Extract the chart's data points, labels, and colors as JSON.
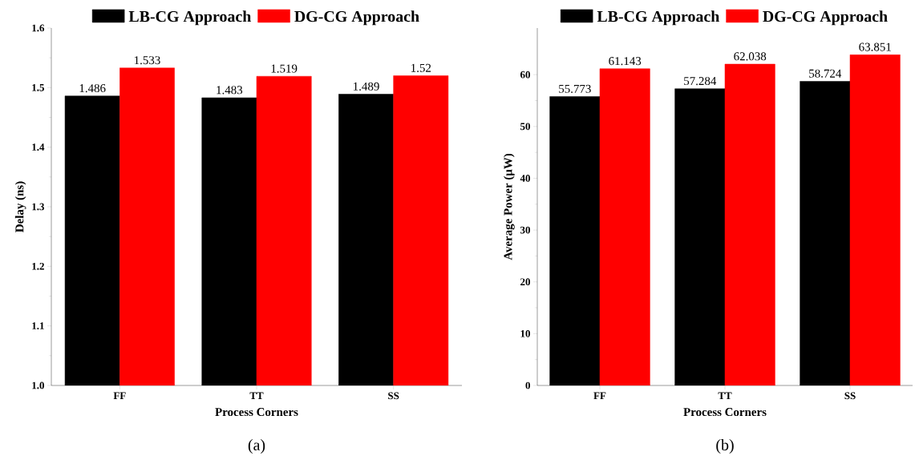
{
  "chart_data": [
    {
      "type": "bar",
      "xlabel": "Process Corners",
      "ylabel": "Delay (ns)",
      "categories": [
        "FF",
        "TT",
        "SS"
      ],
      "series": [
        {
          "name": "LB-CG Approach",
          "color": "#000000",
          "values": [
            1.486,
            1.483,
            1.489
          ]
        },
        {
          "name": "DG-CG Approach",
          "color": "#ff0000",
          "values": [
            1.533,
            1.519,
            1.52
          ]
        }
      ],
      "ylim": [
        1.0,
        1.6
      ],
      "yticks": [
        {
          "value": 1.0,
          "label": "1.0"
        },
        1.1,
        1.2,
        1.3,
        1.4,
        1.5,
        1.6
      ],
      "data_labels": true,
      "legend": "top",
      "annotations": [
        "(a)"
      ]
    },
    {
      "type": "bar",
      "xlabel": "Process Corners",
      "ylabel": "Average Power (μW)",
      "categories": [
        "FF",
        "TT",
        "SS"
      ],
      "series": [
        {
          "name": "LB-CG Approach",
          "color": "#000000",
          "values": [
            55.773,
            57.284,
            58.724
          ]
        },
        {
          "name": "DG-CG Approach",
          "color": "#ff0000",
          "values": [
            61.143,
            62.038,
            63.851
          ]
        }
      ],
      "ylim": [
        0,
        69
      ],
      "yticks": [
        0,
        10,
        20,
        30,
        40,
        50,
        60
      ],
      "data_labels": true,
      "legend": "top",
      "annotations": [
        "(b)"
      ]
    }
  ]
}
